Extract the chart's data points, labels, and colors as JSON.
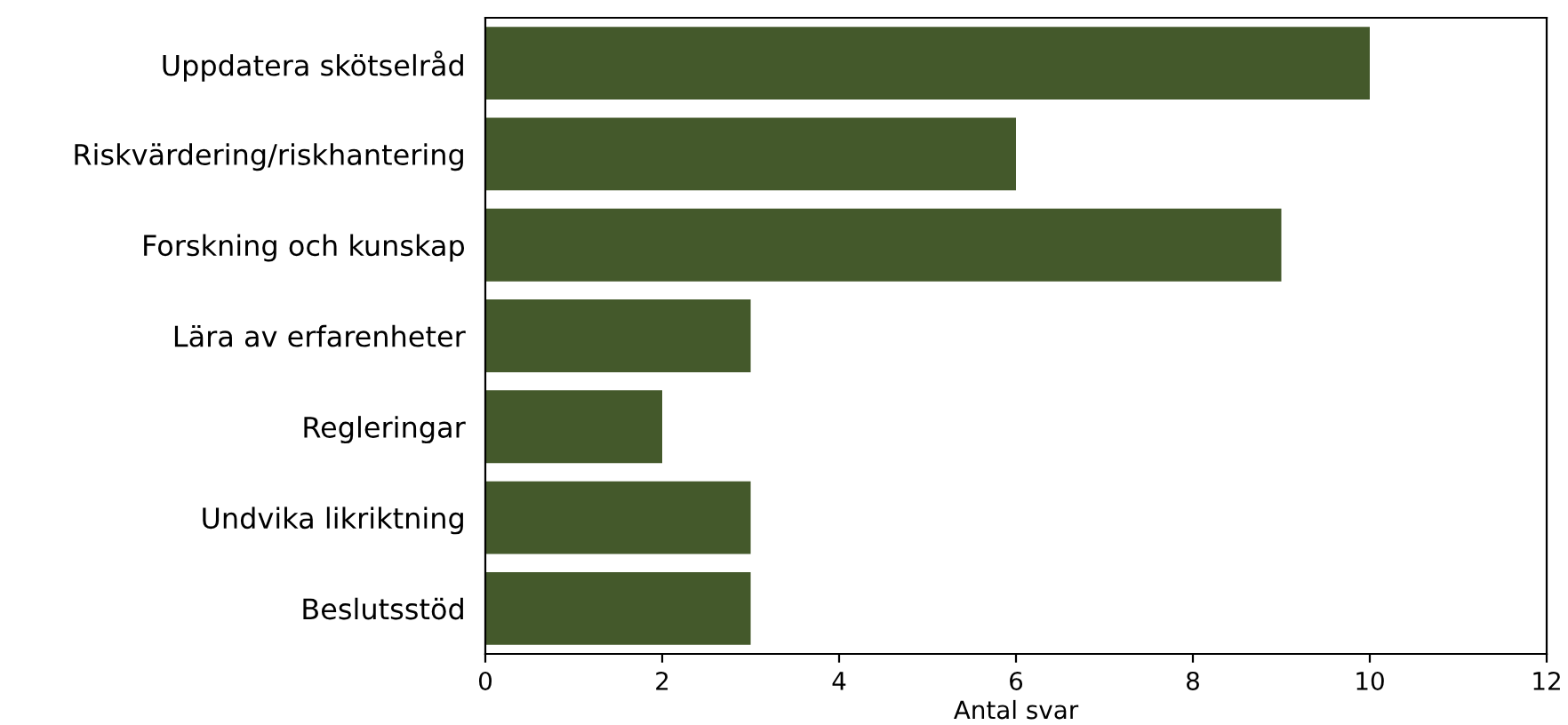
{
  "chart_data": {
    "type": "bar",
    "orientation": "horizontal",
    "xlabel": "Antal svar",
    "categories": [
      "Uppdatera skötselråd",
      "Riskvärdering/riskhantering",
      "Forskning och kunskap",
      "Lära av erfarenheter",
      "Regleringar",
      "Undvika likriktning",
      "Beslutsstöd"
    ],
    "values": [
      10,
      6,
      9,
      3,
      2,
      3,
      3
    ],
    "color": "#44592b",
    "xlim": [
      0,
      12
    ],
    "xticks": [
      0,
      2,
      4,
      6,
      8,
      10,
      12
    ],
    "grid": false,
    "legend": false
  }
}
